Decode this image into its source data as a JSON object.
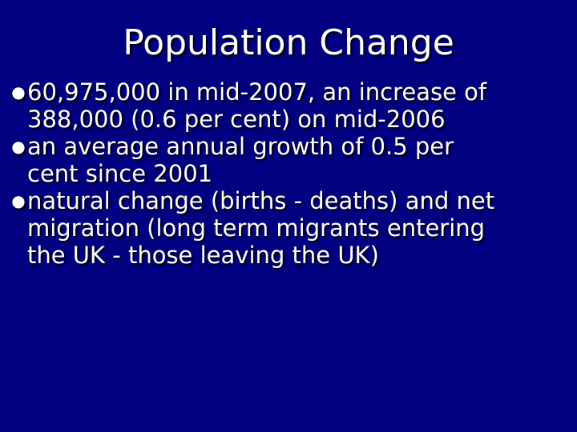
{
  "slide": {
    "title": "Population Change",
    "bullets": [
      {
        "lines": [
          "60,975,000 in mid-2007, an increase of",
          "388,000 (0.6 per cent) on mid-2006"
        ]
      },
      {
        "lines": [
          "an average annual growth of 0.5 per",
          "cent since 2001"
        ]
      },
      {
        "lines": [
          "natural change (births - deaths) and net",
          "migration (long term migrants entering",
          "the UK - those leaving the UK)"
        ]
      }
    ],
    "colors": {
      "background": "#000080",
      "text": "#ffffff"
    }
  }
}
